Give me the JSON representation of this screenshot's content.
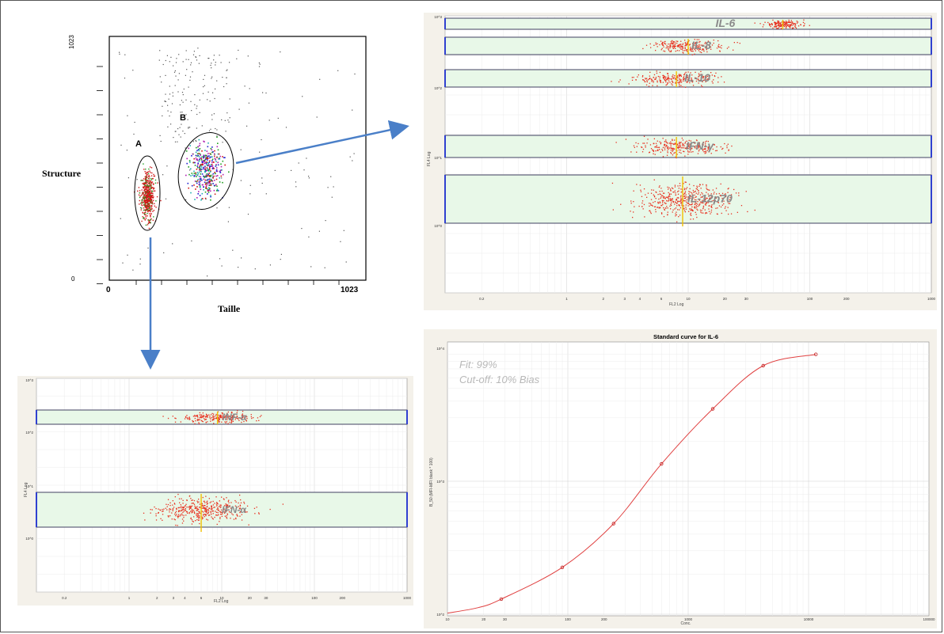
{
  "scatter_main": {
    "y_tick_top": "1023",
    "y_tick_bottom": "0",
    "x_tick_left": "0",
    "x_tick_right": "1023",
    "ylabel": "Structure",
    "xlabel": "Taille",
    "gate_a_label": "A",
    "gate_b_label": "B",
    "colors": {
      "gate_a": "#d01818",
      "gate_a_alt": "#20a020",
      "gate_b_mix": [
        "#2020d0",
        "#20a020",
        "#d01818",
        "#b020b0",
        "#20b0b0"
      ]
    }
  },
  "panel_top_right": {
    "ylabel": "FL4 Log",
    "xlabel": "FL2 Log",
    "y_ticks": [
      "10^3",
      "10^2",
      "10^1",
      "10^0"
    ],
    "x_ticks": [
      "0.2",
      "1",
      "2",
      "3",
      "4",
      "6",
      "10",
      "20",
      "30",
      "100",
      "200",
      "1000"
    ],
    "bands": [
      "IL-6",
      "IL-8",
      "IL-10",
      "IFN-γ",
      "IL-12p70"
    ],
    "colors": {
      "band_fill": "#e8f8e8",
      "band_edge": "#3040d0",
      "dots": "#e83020",
      "median": "#f0c000"
    }
  },
  "panel_bottom_left": {
    "ylabel": "FL4 Log",
    "xlabel": "FL2 Log",
    "y_ticks": [
      "10^3",
      "10^2",
      "10^1",
      "10^0"
    ],
    "x_ticks": [
      "0.2",
      "1",
      "2",
      "3",
      "4",
      "6",
      "10",
      "20",
      "30",
      "100",
      "200",
      "1000"
    ],
    "bands": [
      "INF-α",
      "IFN-α"
    ]
  },
  "chart_data": [
    {
      "type": "scatter",
      "title": "",
      "xlabel": "Taille",
      "ylabel": "Structure",
      "xlim": [
        0,
        1023
      ],
      "ylim": [
        0,
        1023
      ],
      "gates": [
        "A",
        "B"
      ]
    },
    {
      "type": "scatter",
      "title": "",
      "xlabel": "FL2 Log",
      "ylabel": "FL4 Log",
      "log_x": true,
      "log_y": true,
      "categories": [
        "IL-6",
        "IL-8",
        "IL-10",
        "IFN-γ",
        "IL-12p70"
      ],
      "median_fl2": [
        60,
        10,
        8,
        8,
        9
      ],
      "band_fl4": [
        1500,
        700,
        150,
        12,
        1.5
      ]
    },
    {
      "type": "scatter",
      "title": "",
      "xlabel": "FL2 Log",
      "ylabel": "FL4 Log",
      "log_x": true,
      "log_y": true,
      "categories": [
        "INF-α",
        "IFN-α"
      ],
      "median_fl2": [
        9,
        6
      ]
    },
    {
      "type": "line",
      "title": "Standard curve for  IL-6",
      "xlabel": "Conc.",
      "ylabel": "B_50 (MFI-MFI blank * 100)",
      "log_x": true,
      "log_y": true,
      "x_ticks": [
        "10",
        "20",
        "30",
        "100",
        "200",
        "1000",
        "10000",
        "100000"
      ],
      "y_ticks": [
        "10^4",
        "10^3",
        "10^2"
      ],
      "annotations": [
        "Fit: 99%",
        "Cut-off: 10% Bias"
      ],
      "series": [
        {
          "x": [
            28,
            90,
            240,
            600,
            1600,
            4200,
            11500
          ],
          "y": [
            130,
            225,
            480,
            1350,
            3500,
            7400,
            9000
          ]
        }
      ]
    }
  ]
}
